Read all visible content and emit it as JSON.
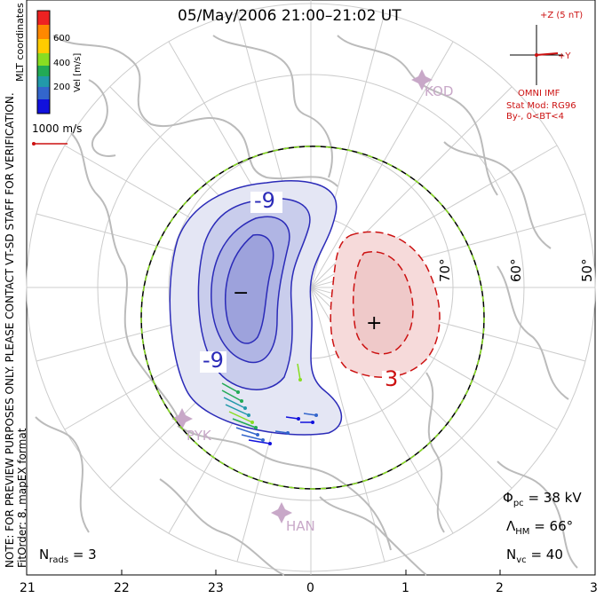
{
  "title": "05/May/2006 21:00–21:02 UT",
  "side_note": {
    "line1": "NOTE: FOR PREVIEW PURPOSES ONLY. PLEASE CONTACT VT-SD STAFF FOR VERIFICATION.",
    "line2": "FitOrder: 8, mapEX format"
  },
  "coords_label": "MLT coordinates",
  "colorbar": {
    "label": "Vel [m/s]",
    "ticks": [
      "600",
      "400",
      "200"
    ],
    "colors": [
      "#ee2222",
      "#ff8800",
      "#ffcc00",
      "#88dd22",
      "#22aa55",
      "#2299aa",
      "#3366cc",
      "#1111dd"
    ]
  },
  "vector_scale": "1000 m/s",
  "imf": {
    "z_label": "+Z (5 nT)",
    "y_label": "+Y",
    "model_title": "OMNI IMF",
    "model": "Stat Mod: RG96",
    "condition": "By-, 0<BT<4"
  },
  "stations": [
    "KOD",
    "PYK",
    "HAN"
  ],
  "lat_labels": [
    "70°",
    "60°",
    "50°"
  ],
  "contour_labels": {
    "neg_top": "-9",
    "neg_bottom": "-9",
    "pos": "3",
    "min_marker": "−",
    "max_marker": "+"
  },
  "stats": {
    "phi_label": "Φ",
    "phi_sub": "pc",
    "phi_value": "= 38 kV",
    "lambda_label": "Λ",
    "lambda_sub": "HM",
    "lambda_value": "= 66°",
    "nvc_label": "N",
    "nvc_sub": "vc",
    "nvc_value": "= 40",
    "nrads_label": "N",
    "nrads_sub": "rads",
    "nrads_value": "= 3"
  },
  "mlt_ticks": [
    "21",
    "22",
    "23",
    "0",
    "1",
    "2",
    "3"
  ],
  "colors": {
    "negative": "#2b2bb8",
    "positive": "#cc1111",
    "coast": "#bbbbbb",
    "grid": "#cccccc"
  }
}
